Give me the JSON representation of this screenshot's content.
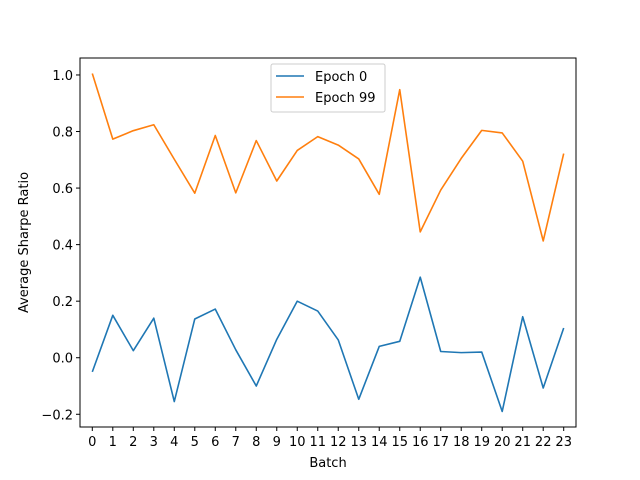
{
  "chart_data": {
    "type": "line",
    "title": "",
    "xlabel": "Batch",
    "ylabel": "Average Sharpe Ratio",
    "x": [
      0,
      1,
      2,
      3,
      4,
      5,
      6,
      7,
      8,
      9,
      10,
      11,
      12,
      13,
      14,
      15,
      16,
      17,
      18,
      19,
      20,
      21,
      22,
      23
    ],
    "xlim": [
      -0.6,
      23.6
    ],
    "ylim": [
      -0.245,
      1.06
    ],
    "yticks": [
      -0.2,
      0.0,
      0.2,
      0.4,
      0.6,
      0.8,
      1.0
    ],
    "ytick_labels": [
      "−0.2",
      "0.0",
      "0.2",
      "0.4",
      "0.6",
      "0.8",
      "1.0"
    ],
    "grid": false,
    "legend_position": "upper-center",
    "series": [
      {
        "name": "Epoch 0",
        "color": "#1f77b4",
        "values": [
          -0.05,
          0.15,
          0.025,
          0.14,
          -0.155,
          0.137,
          0.172,
          0.028,
          -0.1,
          0.065,
          0.2,
          0.165,
          0.063,
          -0.147,
          0.04,
          0.058,
          0.285,
          0.022,
          0.018,
          0.02,
          -0.19,
          0.145,
          -0.107,
          0.105
        ]
      },
      {
        "name": "Epoch 99",
        "color": "#ff7f0e",
        "values": [
          1.005,
          0.773,
          0.803,
          0.824,
          0.702,
          0.582,
          0.786,
          0.583,
          0.768,
          0.625,
          0.733,
          0.782,
          0.752,
          0.703,
          0.578,
          0.948,
          0.445,
          0.593,
          0.705,
          0.804,
          0.795,
          0.695,
          0.413,
          0.722
        ]
      }
    ]
  }
}
